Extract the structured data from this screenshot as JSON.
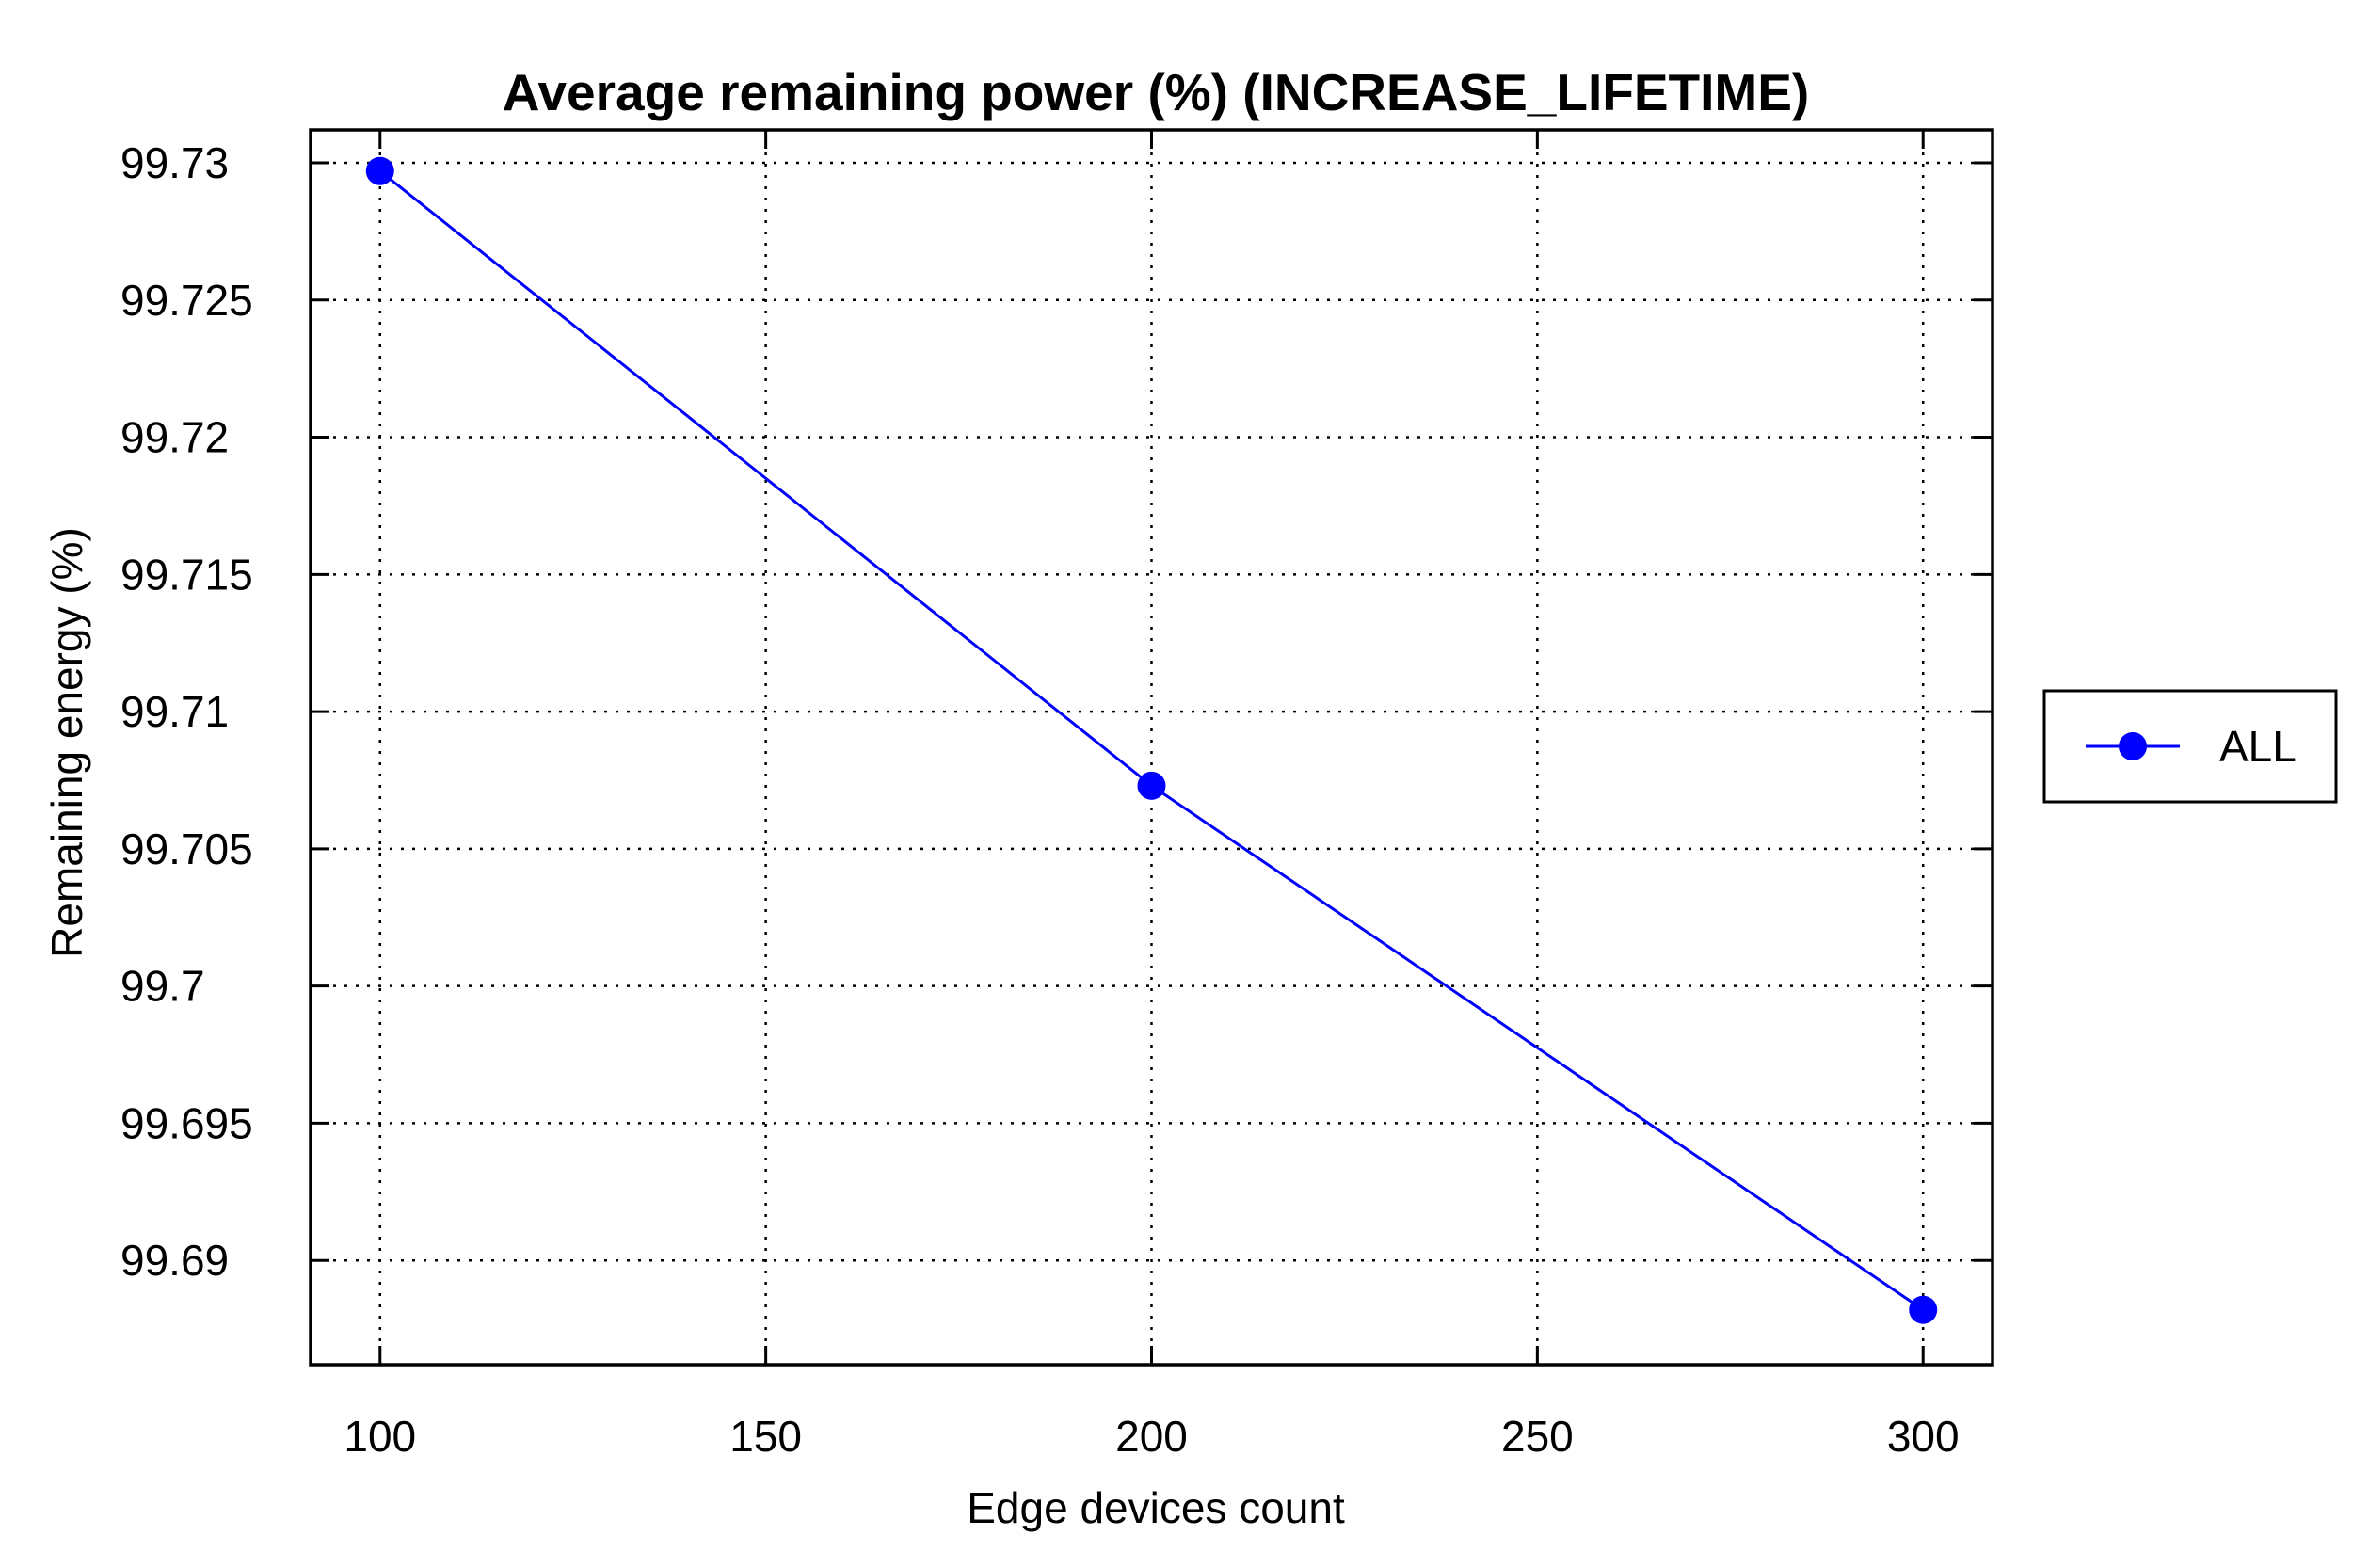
{
  "chart_data": {
    "type": "line",
    "title": "Average remaining power (%) (INCREASE_LIFETIME)",
    "xlabel": "Edge devices count",
    "ylabel": "Remaining energy (%)",
    "xlim": [
      91,
      309
    ],
    "ylim": [
      99.6862,
      99.7312
    ],
    "x_ticks": [
      100,
      150,
      200,
      250,
      300
    ],
    "x_tick_labels": [
      "100",
      "150",
      "200",
      "250",
      "300"
    ],
    "y_ticks": [
      99.69,
      99.695,
      99.7,
      99.705,
      99.71,
      99.715,
      99.72,
      99.725,
      99.73
    ],
    "y_tick_labels": [
      "99.69",
      "99.695",
      "99.7",
      "99.705",
      "99.71",
      "99.715",
      "99.72",
      "99.725",
      "99.73"
    ],
    "grid": true,
    "legend_position": "right",
    "series": [
      {
        "name": "ALL",
        "color": "#0000ff",
        "marker": "circle",
        "x": [
          100,
          200,
          300
        ],
        "y": [
          99.7297,
          99.7073,
          99.6882
        ]
      }
    ]
  }
}
